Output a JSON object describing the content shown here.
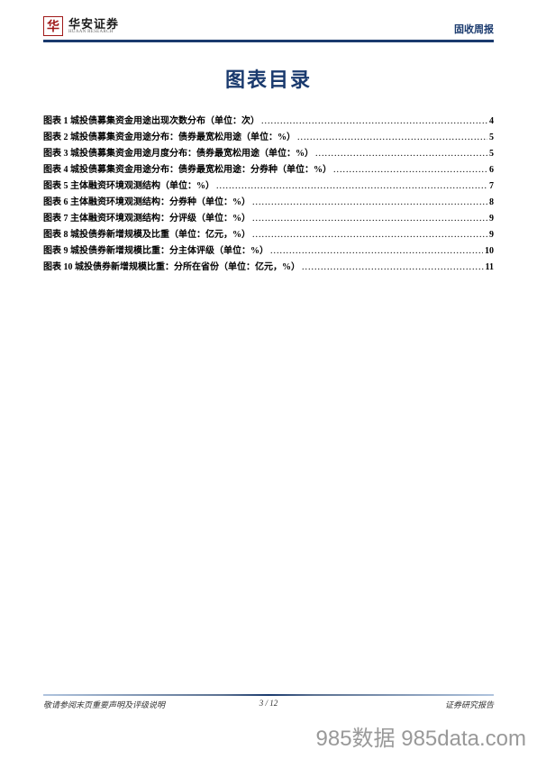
{
  "header": {
    "logo_cn": "华安证券",
    "logo_en": "HUAAN RESEARCH",
    "right_label": "固收周报"
  },
  "title": "图表目录",
  "toc": [
    {
      "label": "图表 1 城投债募集资金用途出现次数分布（单位：次）",
      "page": "4"
    },
    {
      "label": "图表 2 城投债募集资金用途分布：债券最宽松用途（单位：%）",
      "page": "5"
    },
    {
      "label": "图表 3 城投债募集资金用途月度分布：债券最宽松用途（单位：%）",
      "page": "5"
    },
    {
      "label": "图表 4 城投债募集资金用途分布：债券最宽松用途：分券种（单位：%）",
      "page": "6"
    },
    {
      "label": "图表 5 主体融资环境观测结构（单位：%）",
      "page": "7"
    },
    {
      "label": "图表 6 主体融资环境观测结构：分券种（单位：%）",
      "page": "8"
    },
    {
      "label": "图表 7 主体融资环境观测结构：分评级（单位：%）",
      "page": "9"
    },
    {
      "label": "图表 8 城投债券新增规模及比重（单位：亿元，%）",
      "page": "9"
    },
    {
      "label": "图表 9 城投债券新增规模比重：分主体评级（单位：%）",
      "page": "10"
    },
    {
      "label": "图表 10 城投债券新增规模比重：分所在省份（单位：亿元，%）",
      "page": "11"
    }
  ],
  "footer": {
    "left": "敬请参阅末页重要声明及评级说明",
    "center": "3 / 12",
    "right": "证券研究报告"
  },
  "watermark": "985数据 985data.com"
}
